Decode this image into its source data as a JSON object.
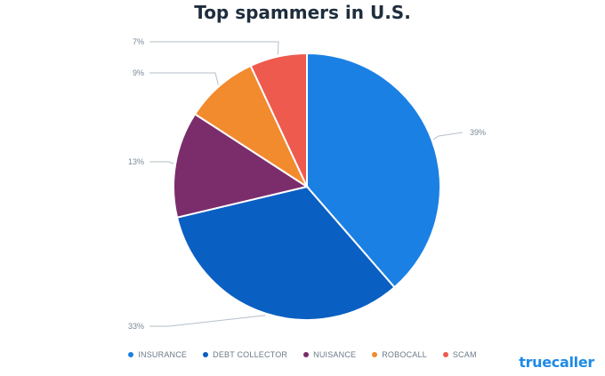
{
  "brand": "truecaller",
  "chart_data": {
    "type": "pie",
    "title": "Top spammers in U.S.",
    "slices": [
      {
        "label": "INSURANCE",
        "value": 39,
        "value_label": "39%",
        "color": "#1b80e4"
      },
      {
        "label": "DEBT COLLECTOR",
        "value": 33,
        "value_label": "33%",
        "color": "#0a5fc2"
      },
      {
        "label": "NUISANCE",
        "value": 13,
        "value_label": "13%",
        "color": "#7b2d6b"
      },
      {
        "label": "ROBOCALL",
        "value": 9,
        "value_label": "9%",
        "color": "#f28a2e"
      },
      {
        "label": "SCAM",
        "value": 7,
        "value_label": "7%",
        "color": "#ee5a4e"
      }
    ],
    "legend_position": "bottom"
  }
}
